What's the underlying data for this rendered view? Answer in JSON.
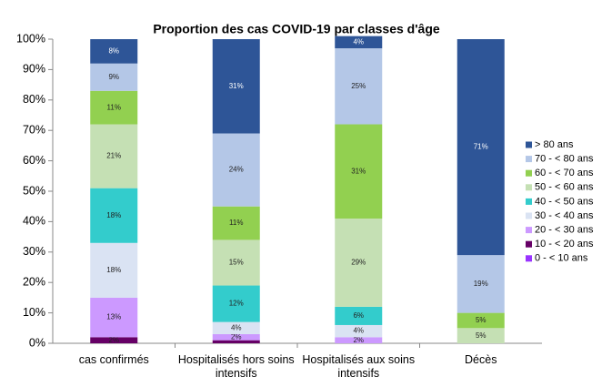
{
  "chart_data": {
    "type": "stacked_bar",
    "title": "Proportion des cas COVID-19 par classes d'âge",
    "categories": [
      "cas confirmés",
      "Hospitalisés hors soins intensifs",
      "Hospitalisés aux soins intensifs",
      "Décès"
    ],
    "ylim": [
      0,
      100
    ],
    "yticks": [
      {
        "value": 0,
        "label": "0%"
      },
      {
        "value": 10,
        "label": "10%"
      },
      {
        "value": 20,
        "label": "20%"
      },
      {
        "value": 30,
        "label": "30%"
      },
      {
        "value": 40,
        "label": "40%"
      },
      {
        "value": 50,
        "label": "50%"
      },
      {
        "value": 60,
        "label": "60%"
      },
      {
        "value": 70,
        "label": "70%"
      },
      {
        "value": 80,
        "label": "80%"
      },
      {
        "value": 90,
        "label": "90%"
      },
      {
        "value": 100,
        "label": "100%"
      }
    ],
    "legend": "right",
    "series": [
      {
        "name": "0 - < 10 ans",
        "color": "#9933ff",
        "values": [
          0,
          0,
          0,
          0
        ],
        "value_labels": [
          null,
          null,
          null,
          null
        ]
      },
      {
        "name": "10 - < 20 ans",
        "color": "#660066",
        "values": [
          2,
          1,
          0,
          0
        ],
        "value_labels": [
          "2%",
          null,
          null,
          null
        ]
      },
      {
        "name": "20 - < 30 ans",
        "color": "#cc99ff",
        "values": [
          13,
          2,
          2,
          0
        ],
        "value_labels": [
          "13%",
          "2%",
          "2%",
          null
        ]
      },
      {
        "name": "30 - < 40 ans",
        "color": "#dae3f3",
        "values": [
          18,
          4,
          4,
          0
        ],
        "value_labels": [
          "18%",
          "4%",
          "4%",
          null
        ]
      },
      {
        "name": "40 - < 50 ans",
        "color": "#33cccc",
        "values": [
          18,
          12,
          6,
          0
        ],
        "value_labels": [
          "18%",
          "12%",
          "6%",
          null
        ]
      },
      {
        "name": "50 - < 60 ans",
        "color": "#c5e0b4",
        "values": [
          21,
          15,
          29,
          5
        ],
        "value_labels": [
          "21%",
          "15%",
          "29%",
          "5%"
        ]
      },
      {
        "name": "60 - < 70 ans",
        "color": "#92d050",
        "values": [
          11,
          11,
          31,
          5
        ],
        "value_labels": [
          "11%",
          "11%",
          "31%",
          "5%"
        ]
      },
      {
        "name": "70 - < 80 ans",
        "color": "#b4c7e7",
        "values": [
          9,
          24,
          25,
          19
        ],
        "value_labels": [
          "9%",
          "24%",
          "25%",
          "19%"
        ]
      },
      {
        "name": "> 80 ans",
        "color": "#2e5597",
        "values": [
          8,
          31,
          4,
          71
        ],
        "value_labels": [
          "8%",
          "31%",
          "4%",
          "71%"
        ]
      }
    ]
  }
}
